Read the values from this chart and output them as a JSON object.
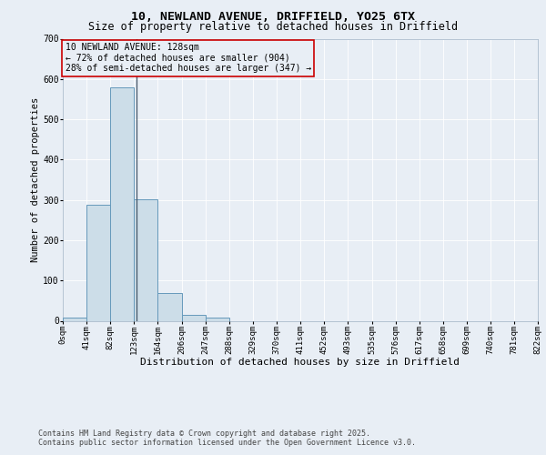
{
  "title": "10, NEWLAND AVENUE, DRIFFIELD, YO25 6TX",
  "subtitle": "Size of property relative to detached houses in Driffield",
  "xlabel": "Distribution of detached houses by size in Driffield",
  "ylabel": "Number of detached properties",
  "bar_values": [
    8,
    289,
    580,
    302,
    70,
    15,
    9,
    0,
    0,
    0,
    0,
    0,
    0,
    0,
    0,
    0,
    0,
    0,
    0,
    0
  ],
  "bin_edges": [
    0,
    41,
    82,
    123,
    164,
    206,
    247,
    288,
    329,
    370,
    411,
    452,
    493,
    535,
    576,
    617,
    658,
    699,
    740,
    781,
    822
  ],
  "tick_labels": [
    "0sqm",
    "41sqm",
    "82sqm",
    "123sqm",
    "164sqm",
    "206sqm",
    "247sqm",
    "288sqm",
    "329sqm",
    "370sqm",
    "411sqm",
    "452sqm",
    "493sqm",
    "535sqm",
    "576sqm",
    "617sqm",
    "658sqm",
    "699sqm",
    "740sqm",
    "781sqm",
    "822sqm"
  ],
  "bar_color": "#ccdde8",
  "bar_edge_color": "#6699bb",
  "background_color": "#e8eef5",
  "grid_color": "#ffffff",
  "ylim": [
    0,
    700
  ],
  "yticks": [
    0,
    100,
    200,
    300,
    400,
    500,
    600,
    700
  ],
  "property_line_x": 128,
  "annotation_text_line1": "10 NEWLAND AVENUE: 128sqm",
  "annotation_text_line2": "← 72% of detached houses are smaller (904)",
  "annotation_text_line3": "28% of semi-detached houses are larger (347) →",
  "annotation_box_edge_color": "#cc0000",
  "footer_line1": "Contains HM Land Registry data © Crown copyright and database right 2025.",
  "footer_line2": "Contains public sector information licensed under the Open Government Licence v3.0.",
  "title_fontsize": 9.5,
  "subtitle_fontsize": 8.5,
  "xlabel_fontsize": 8,
  "ylabel_fontsize": 7.5,
  "tick_fontsize": 6.5,
  "annotation_fontsize": 7,
  "footer_fontsize": 6
}
